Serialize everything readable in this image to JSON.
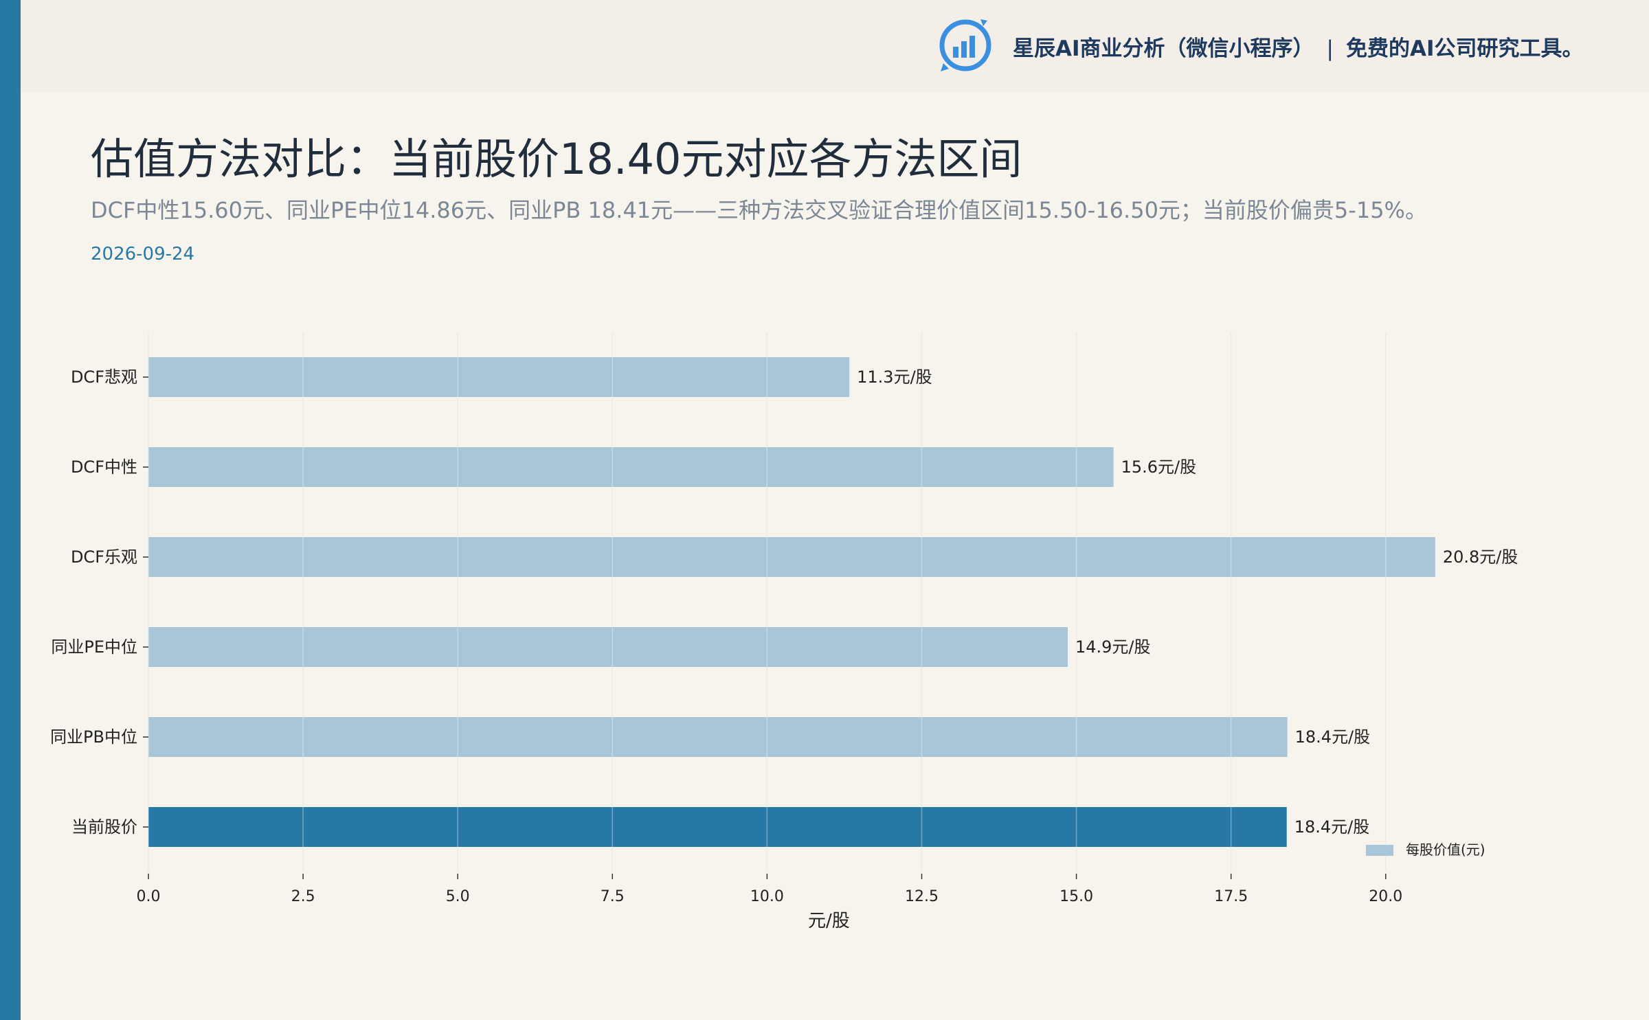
{
  "header": {
    "brand_name": "星辰AI商业分析（微信小程序）",
    "separator": "|",
    "tagline": "免费的AI公司研究工具。",
    "logo_icon": "bar-chart-logo-icon"
  },
  "title": "估值方法对比：当前股价18.40元对应各方法区间",
  "subtitle": "DCF中性15.60元、同业PE中位14.86元、同业PB 18.41元——三种方法交叉验证合理价值区间15.50-16.50元；当前股价偏贵5-15%。",
  "date": "2026-09-24",
  "colors": {
    "accent": "#2878a6",
    "bar": "#a9c5d8",
    "bar_highlight": "#2878a6"
  },
  "chart_data": {
    "type": "bar",
    "orientation": "horizontal",
    "categories": [
      "DCF悲观",
      "DCF中性",
      "DCF乐观",
      "同业PE中位",
      "同业PB中位",
      "当前股价"
    ],
    "values": [
      11.33,
      15.6,
      20.8,
      14.86,
      18.41,
      18.4
    ],
    "value_labels": [
      "11.3元/股",
      "15.6元/股",
      "20.8元/股",
      "14.9元/股",
      "18.4元/股",
      "18.4元/股"
    ],
    "highlight_index": 5,
    "xlabel": "元/股",
    "xlim": [
      0,
      22.0
    ],
    "xticks": [
      "0.0",
      "2.5",
      "5.0",
      "7.5",
      "10.0",
      "12.5",
      "15.0",
      "17.5",
      "20.0"
    ],
    "xtick_values": [
      0,
      2.5,
      5.0,
      7.5,
      10.0,
      12.5,
      15.0,
      17.5,
      20.0
    ],
    "grid": true,
    "legend": {
      "label": "每股价值(元)",
      "placement": "bottom-right"
    }
  }
}
